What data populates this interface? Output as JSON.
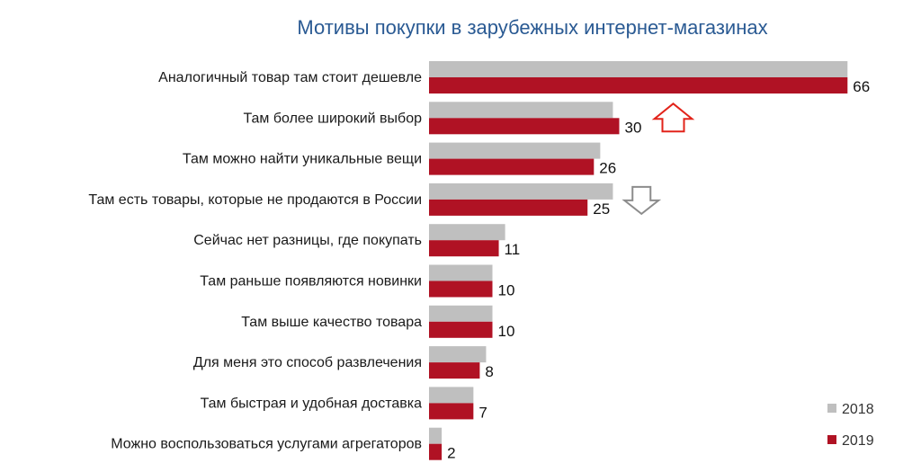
{
  "chart_data": {
    "type": "bar",
    "orientation": "horizontal",
    "title": "Мотивы покупки в зарубежных интернет-магазинах",
    "categories": [
      "Аналогичный товар там стоит дешевле",
      "Там более широкий выбор",
      "Там можно найти уникальные вещи",
      "Там есть товары, которые не продаются в России",
      "Сейчас нет разницы, где покупать",
      "Там раньше появляются новинки",
      "Там выше качество товара",
      "Для меня это способ развлечения",
      "Там быстрая и удобная доставка",
      "Можно воспользоваться услугами агрегаторов"
    ],
    "series": [
      {
        "name": "2018",
        "color": "#bfbfbf",
        "values": [
          66,
          29,
          27,
          29,
          12,
          10,
          10,
          9,
          7,
          2
        ]
      },
      {
        "name": "2019",
        "color": "#b01224",
        "values": [
          66,
          30,
          26,
          25,
          11,
          10,
          10,
          8,
          7,
          2
        ]
      }
    ],
    "data_labels_series": "2019",
    "annotations": [
      {
        "category": "Там более широкий выбор",
        "type": "up-arrow",
        "color": "#e2231a"
      },
      {
        "category": "Там есть товары, которые не продаются в России",
        "type": "down-arrow",
        "color": "#8c8c8c"
      }
    ],
    "legend_position": "bottom-right",
    "grid": false
  }
}
